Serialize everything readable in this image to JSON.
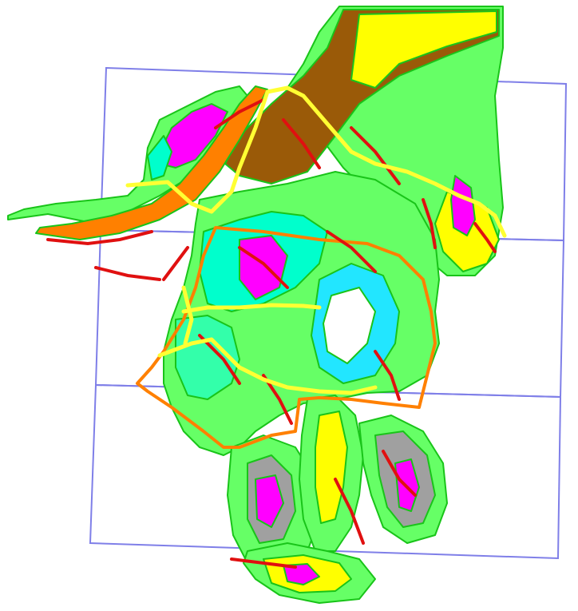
{
  "map": {
    "type": "geologic-map",
    "labels": [],
    "colors": {
      "background": "#ffffff",
      "grid": "#7f7fe8",
      "contact_outline": "#19c419",
      "fault": "#e01010",
      "road": "#ffff33",
      "boundary": "#ff8000",
      "unit_brown": "#9a5a08",
      "unit_orange": "#ff8000",
      "unit_magenta": "#ff00ff",
      "unit_aqua": "#00ffcc",
      "unit_cyan": "#22e6ff",
      "unit_yellow": "#ffff00",
      "unit_lime": "#66ff66",
      "unit_grey": "#a0a0a0",
      "unit_seafoam": "#33ffaa"
    }
  }
}
